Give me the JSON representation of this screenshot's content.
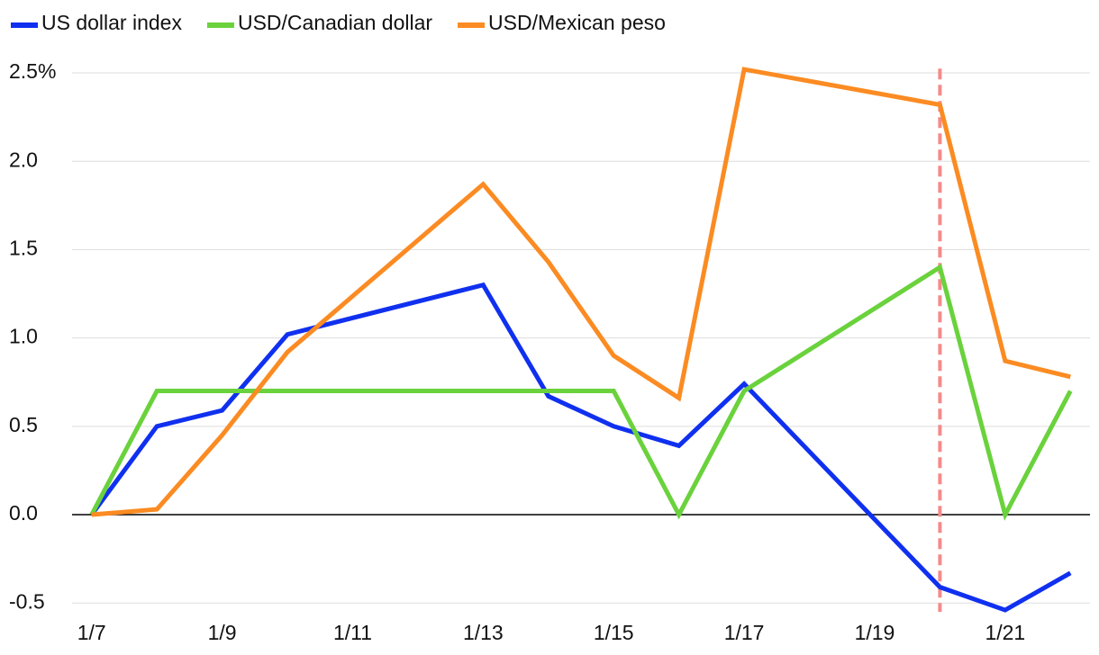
{
  "chart_data": {
    "type": "line",
    "x": [
      7,
      8,
      9,
      10,
      13,
      14,
      15,
      16,
      17,
      20,
      21,
      22
    ],
    "series": [
      {
        "name": "US dollar index",
        "color": "#1030f0",
        "values": [
          0,
          0.5,
          0.59,
          1.02,
          1.3,
          0.67,
          0.5,
          0.39,
          0.74,
          -0.41,
          -0.54,
          -0.33
        ]
      },
      {
        "name": "USD/Canadian dollar",
        "color": "#6ad23c",
        "values": [
          0,
          0.7,
          0.7,
          0.7,
          0.7,
          0.7,
          0.7,
          0,
          0.7,
          1.4,
          0,
          0.7
        ]
      },
      {
        "name": "USD/Mexican peso",
        "color": "#fb8b22",
        "values": [
          0,
          0.03,
          0.45,
          0.92,
          1.87,
          1.43,
          0.9,
          0.66,
          2.52,
          2.32,
          0.87,
          0.78
        ]
      }
    ],
    "xlim": [
      6.7,
      22.3
    ],
    "xticks": [
      {
        "value": 7,
        "label": "1/7"
      },
      {
        "value": 9,
        "label": "1/9"
      },
      {
        "value": 11,
        "label": "1/11"
      },
      {
        "value": 13,
        "label": "1/13"
      },
      {
        "value": 15,
        "label": "1/15"
      },
      {
        "value": 17,
        "label": "1/17"
      },
      {
        "value": 19,
        "label": "1/19"
      },
      {
        "value": 21,
        "label": "1/21"
      }
    ],
    "ylim": [
      -0.56,
      2.55
    ],
    "yticks": [
      {
        "value": 2.5,
        "label": "2.5%"
      },
      {
        "value": 2,
        "label": "2.0"
      },
      {
        "value": 1.5,
        "label": "1.5"
      },
      {
        "value": 1,
        "label": "1.0"
      },
      {
        "value": 0.5,
        "label": "0.5"
      },
      {
        "value": 0,
        "label": "0.0"
      },
      {
        "value": -0.5,
        "label": "-0.5"
      }
    ],
    "grid": true,
    "marker_x": 20,
    "marker_color": "#f58a8a",
    "legend": "top-left"
  }
}
